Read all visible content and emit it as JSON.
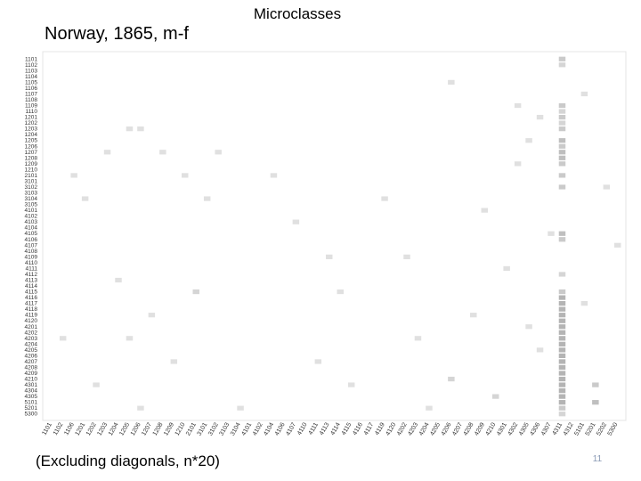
{
  "chart_data": {
    "type": "matrix",
    "title": "Microclasses",
    "subtitle": "Norway, 1865, m-f",
    "footnote": "(Excluding diagonals, n*20)",
    "page_number": "11",
    "rows": [
      "1101",
      "1102",
      "1103",
      "1104",
      "1105",
      "1106",
      "1107",
      "1108",
      "1109",
      "1110",
      "1201",
      "1202",
      "1203",
      "1204",
      "1205",
      "1206",
      "1207",
      "1208",
      "1209",
      "1210",
      "2101",
      "3101",
      "3102",
      "3103",
      "3104",
      "3105",
      "4101",
      "4102",
      "4103",
      "4104",
      "4105",
      "4106",
      "4107",
      "4108",
      "4109",
      "4110",
      "4111",
      "4112",
      "4113",
      "4114",
      "4115",
      "4116",
      "4117",
      "4118",
      "4119",
      "4120",
      "4201",
      "4202",
      "4203",
      "4204",
      "4205",
      "4206",
      "4207",
      "4208",
      "4209",
      "4210",
      "4301",
      "4304",
      "4305",
      "5101",
      "5201",
      "5300"
    ],
    "columns": [
      "1101",
      "1102",
      "1106",
      "1201",
      "1202",
      "1203",
      "1204",
      "1205",
      "1206",
      "1207",
      "1208",
      "1209",
      "1210",
      "2101",
      "3101",
      "3102",
      "3103",
      "3104",
      "4101",
      "4102",
      "4104",
      "4106",
      "4107",
      "4110",
      "4111",
      "4113",
      "4114",
      "4115",
      "4116",
      "4117",
      "4119",
      "4120",
      "4202",
      "4203",
      "4204",
      "4205",
      "4206",
      "4207",
      "4208",
      "4209",
      "4210",
      "4301",
      "4302",
      "4305",
      "4306",
      "4307",
      "4311",
      "4312",
      "5101",
      "5201",
      "5202",
      "5300"
    ],
    "cells": [
      [
        0,
        46,
        3
      ],
      [
        1,
        46,
        2
      ],
      [
        8,
        46,
        3
      ],
      [
        9,
        46,
        2
      ],
      [
        10,
        46,
        3
      ],
      [
        11,
        46,
        2
      ],
      [
        12,
        46,
        3
      ],
      [
        14,
        46,
        4
      ],
      [
        15,
        46,
        3
      ],
      [
        16,
        46,
        4
      ],
      [
        17,
        46,
        4
      ],
      [
        18,
        46,
        3
      ],
      [
        20,
        46,
        3
      ],
      [
        22,
        46,
        3
      ],
      [
        30,
        46,
        4
      ],
      [
        31,
        46,
        3
      ],
      [
        37,
        46,
        2
      ],
      [
        40,
        46,
        3
      ],
      [
        41,
        46,
        5
      ],
      [
        42,
        46,
        5
      ],
      [
        43,
        46,
        5
      ],
      [
        44,
        46,
        5
      ],
      [
        45,
        46,
        5
      ],
      [
        46,
        46,
        5
      ],
      [
        47,
        46,
        5
      ],
      [
        48,
        46,
        5
      ],
      [
        49,
        46,
        5
      ],
      [
        50,
        46,
        5
      ],
      [
        51,
        46,
        5
      ],
      [
        52,
        46,
        5
      ],
      [
        53,
        46,
        5
      ],
      [
        54,
        46,
        5
      ],
      [
        55,
        46,
        5
      ],
      [
        56,
        46,
        5
      ],
      [
        57,
        46,
        5
      ],
      [
        58,
        46,
        5
      ],
      [
        59,
        46,
        5
      ],
      [
        60,
        46,
        3
      ],
      [
        61,
        46,
        2
      ],
      [
        56,
        49,
        3
      ],
      [
        59,
        49,
        4
      ],
      [
        58,
        40,
        2
      ],
      [
        55,
        36,
        2
      ],
      [
        12,
        7,
        1
      ],
      [
        12,
        8,
        1
      ],
      [
        16,
        5,
        1
      ],
      [
        16,
        10,
        1
      ],
      [
        16,
        15,
        1
      ],
      [
        20,
        2,
        1
      ],
      [
        20,
        12,
        1
      ],
      [
        20,
        20,
        1
      ],
      [
        24,
        3,
        1
      ],
      [
        24,
        14,
        1
      ],
      [
        24,
        30,
        1
      ],
      [
        28,
        22,
        1
      ],
      [
        34,
        25,
        1
      ],
      [
        34,
        32,
        1
      ],
      [
        38,
        6,
        1
      ],
      [
        40,
        13,
        2
      ],
      [
        40,
        26,
        1
      ],
      [
        44,
        9,
        1
      ],
      [
        44,
        38,
        1
      ],
      [
        48,
        1,
        1
      ],
      [
        48,
        7,
        1
      ],
      [
        48,
        33,
        1
      ],
      [
        52,
        11,
        1
      ],
      [
        52,
        24,
        1
      ],
      [
        56,
        4,
        1
      ],
      [
        56,
        27,
        1
      ],
      [
        60,
        8,
        1
      ],
      [
        60,
        17,
        1
      ],
      [
        60,
        34,
        1
      ],
      [
        4,
        36,
        1
      ],
      [
        8,
        42,
        1
      ],
      [
        10,
        44,
        1
      ],
      [
        14,
        43,
        1
      ],
      [
        18,
        42,
        1
      ],
      [
        26,
        39,
        1
      ],
      [
        30,
        45,
        1
      ],
      [
        36,
        41,
        1
      ],
      [
        46,
        43,
        1
      ],
      [
        50,
        44,
        1
      ],
      [
        6,
        48,
        1
      ],
      [
        22,
        50,
        1
      ],
      [
        32,
        51,
        1
      ],
      [
        42,
        48,
        1
      ]
    ]
  }
}
